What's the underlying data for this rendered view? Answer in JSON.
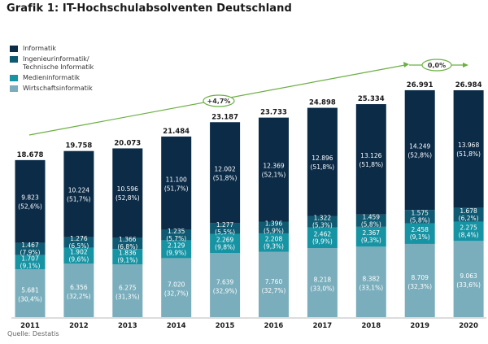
{
  "title": "Grafik 1: IT-Hochschulabsolventen Deutschland",
  "source": "Quelle: Destatis",
  "chart_data": {
    "type": "bar",
    "stacked": true,
    "title": "Grafik 1: IT-Hochschulabsolventen Deutschland",
    "xlabel": "",
    "ylabel": "",
    "ylim": [
      0,
      27000
    ],
    "grid": false,
    "legend_position": "top-left",
    "categories": [
      "2011",
      "2012",
      "2013",
      "2014",
      "2015",
      "2016",
      "2017",
      "2018",
      "2019",
      "2020"
    ],
    "totals": [
      18678,
      19758,
      20073,
      21484,
      23187,
      23733,
      24898,
      25334,
      26991,
      26984
    ],
    "total_labels": [
      "18.678",
      "19.758",
      "20.073",
      "21.484",
      "23.187",
      "23.733",
      "24.898",
      "25.334",
      "26.991",
      "26.984"
    ],
    "series": [
      {
        "name": "Wirtschaftsinformatik",
        "color": "#7aaebc",
        "values": [
          5681,
          6356,
          6275,
          7020,
          7639,
          7760,
          8218,
          8382,
          8709,
          9063
        ],
        "value_labels": [
          "5.681",
          "6.356",
          "6.275",
          "7.020",
          "7.639",
          "7.760",
          "8.218",
          "8.382",
          "8.709",
          "9.063"
        ],
        "share_labels": [
          "(30,4%)",
          "(32,2%)",
          "(31,3%)",
          "(32,7%)",
          "(32,9%)",
          "(32,7%)",
          "(33,0%)",
          "(33,1%)",
          "(32,3%)",
          "(33,6%)"
        ]
      },
      {
        "name": "Medieninformatik",
        "color": "#1794a4",
        "values": [
          1707,
          1902,
          1836,
          2129,
          2269,
          2208,
          2462,
          2367,
          2458,
          2275
        ],
        "value_labels": [
          "1.707",
          "1.902",
          "1.836",
          "2.129",
          "2.269",
          "2.208",
          "2.462",
          "2.367",
          "2.458",
          "2.275"
        ],
        "share_labels": [
          "(9,1%)",
          "(9,6%)",
          "(9,1%)",
          "(9,9%)",
          "(9,8%)",
          "(9,3%)",
          "(9,9%)",
          "(9,3%)",
          "(9,1%)",
          "(8,4%)"
        ]
      },
      {
        "name": "Ingenieurinformatik/ Technische Informatik",
        "legend_lines": [
          "Ingenieurinformatik/",
          "Technische Informatik"
        ],
        "color": "#0f5a72",
        "values": [
          1467,
          1276,
          1366,
          1235,
          1277,
          1396,
          1322,
          1459,
          1575,
          1678
        ],
        "value_labels": [
          "1.467",
          "1.276",
          "1.366",
          "1.235",
          "1.277",
          "1.396",
          "1.322",
          "1.459",
          "1.575",
          "1.678"
        ],
        "share_labels": [
          "(7,9%)",
          "(6,5%)",
          "(6,8%)",
          "(5,7%)",
          "(5,5%)",
          "(5,9%)",
          "(5,3%)",
          "(5,8%)",
          "(5,8%)",
          "(6,2%)"
        ]
      },
      {
        "name": "Informatik",
        "color": "#0b2b47",
        "values": [
          9823,
          10224,
          10596,
          11100,
          12002,
          12369,
          12896,
          13126,
          14249,
          13968
        ],
        "value_labels": [
          "9.823",
          "10.224",
          "10.596",
          "11.100",
          "12.002",
          "12.369",
          "12.896",
          "13.126",
          "14.249",
          "13.968"
        ],
        "share_labels": [
          "(52,6%)",
          "(51,7%)",
          "(52,8%)",
          "(51,7%)",
          "(51,8%)",
          "(52,1%)",
          "(51,8%)",
          "(51,8%)",
          "(52,8%)",
          "(51,8%)"
        ]
      }
    ],
    "annotations": [
      {
        "label": "+4,7%",
        "from": "2011",
        "to": "2019",
        "color": "#6ab042"
      },
      {
        "label": "0,0%",
        "from": "2019",
        "to": "2020",
        "color": "#6ab042"
      }
    ]
  }
}
